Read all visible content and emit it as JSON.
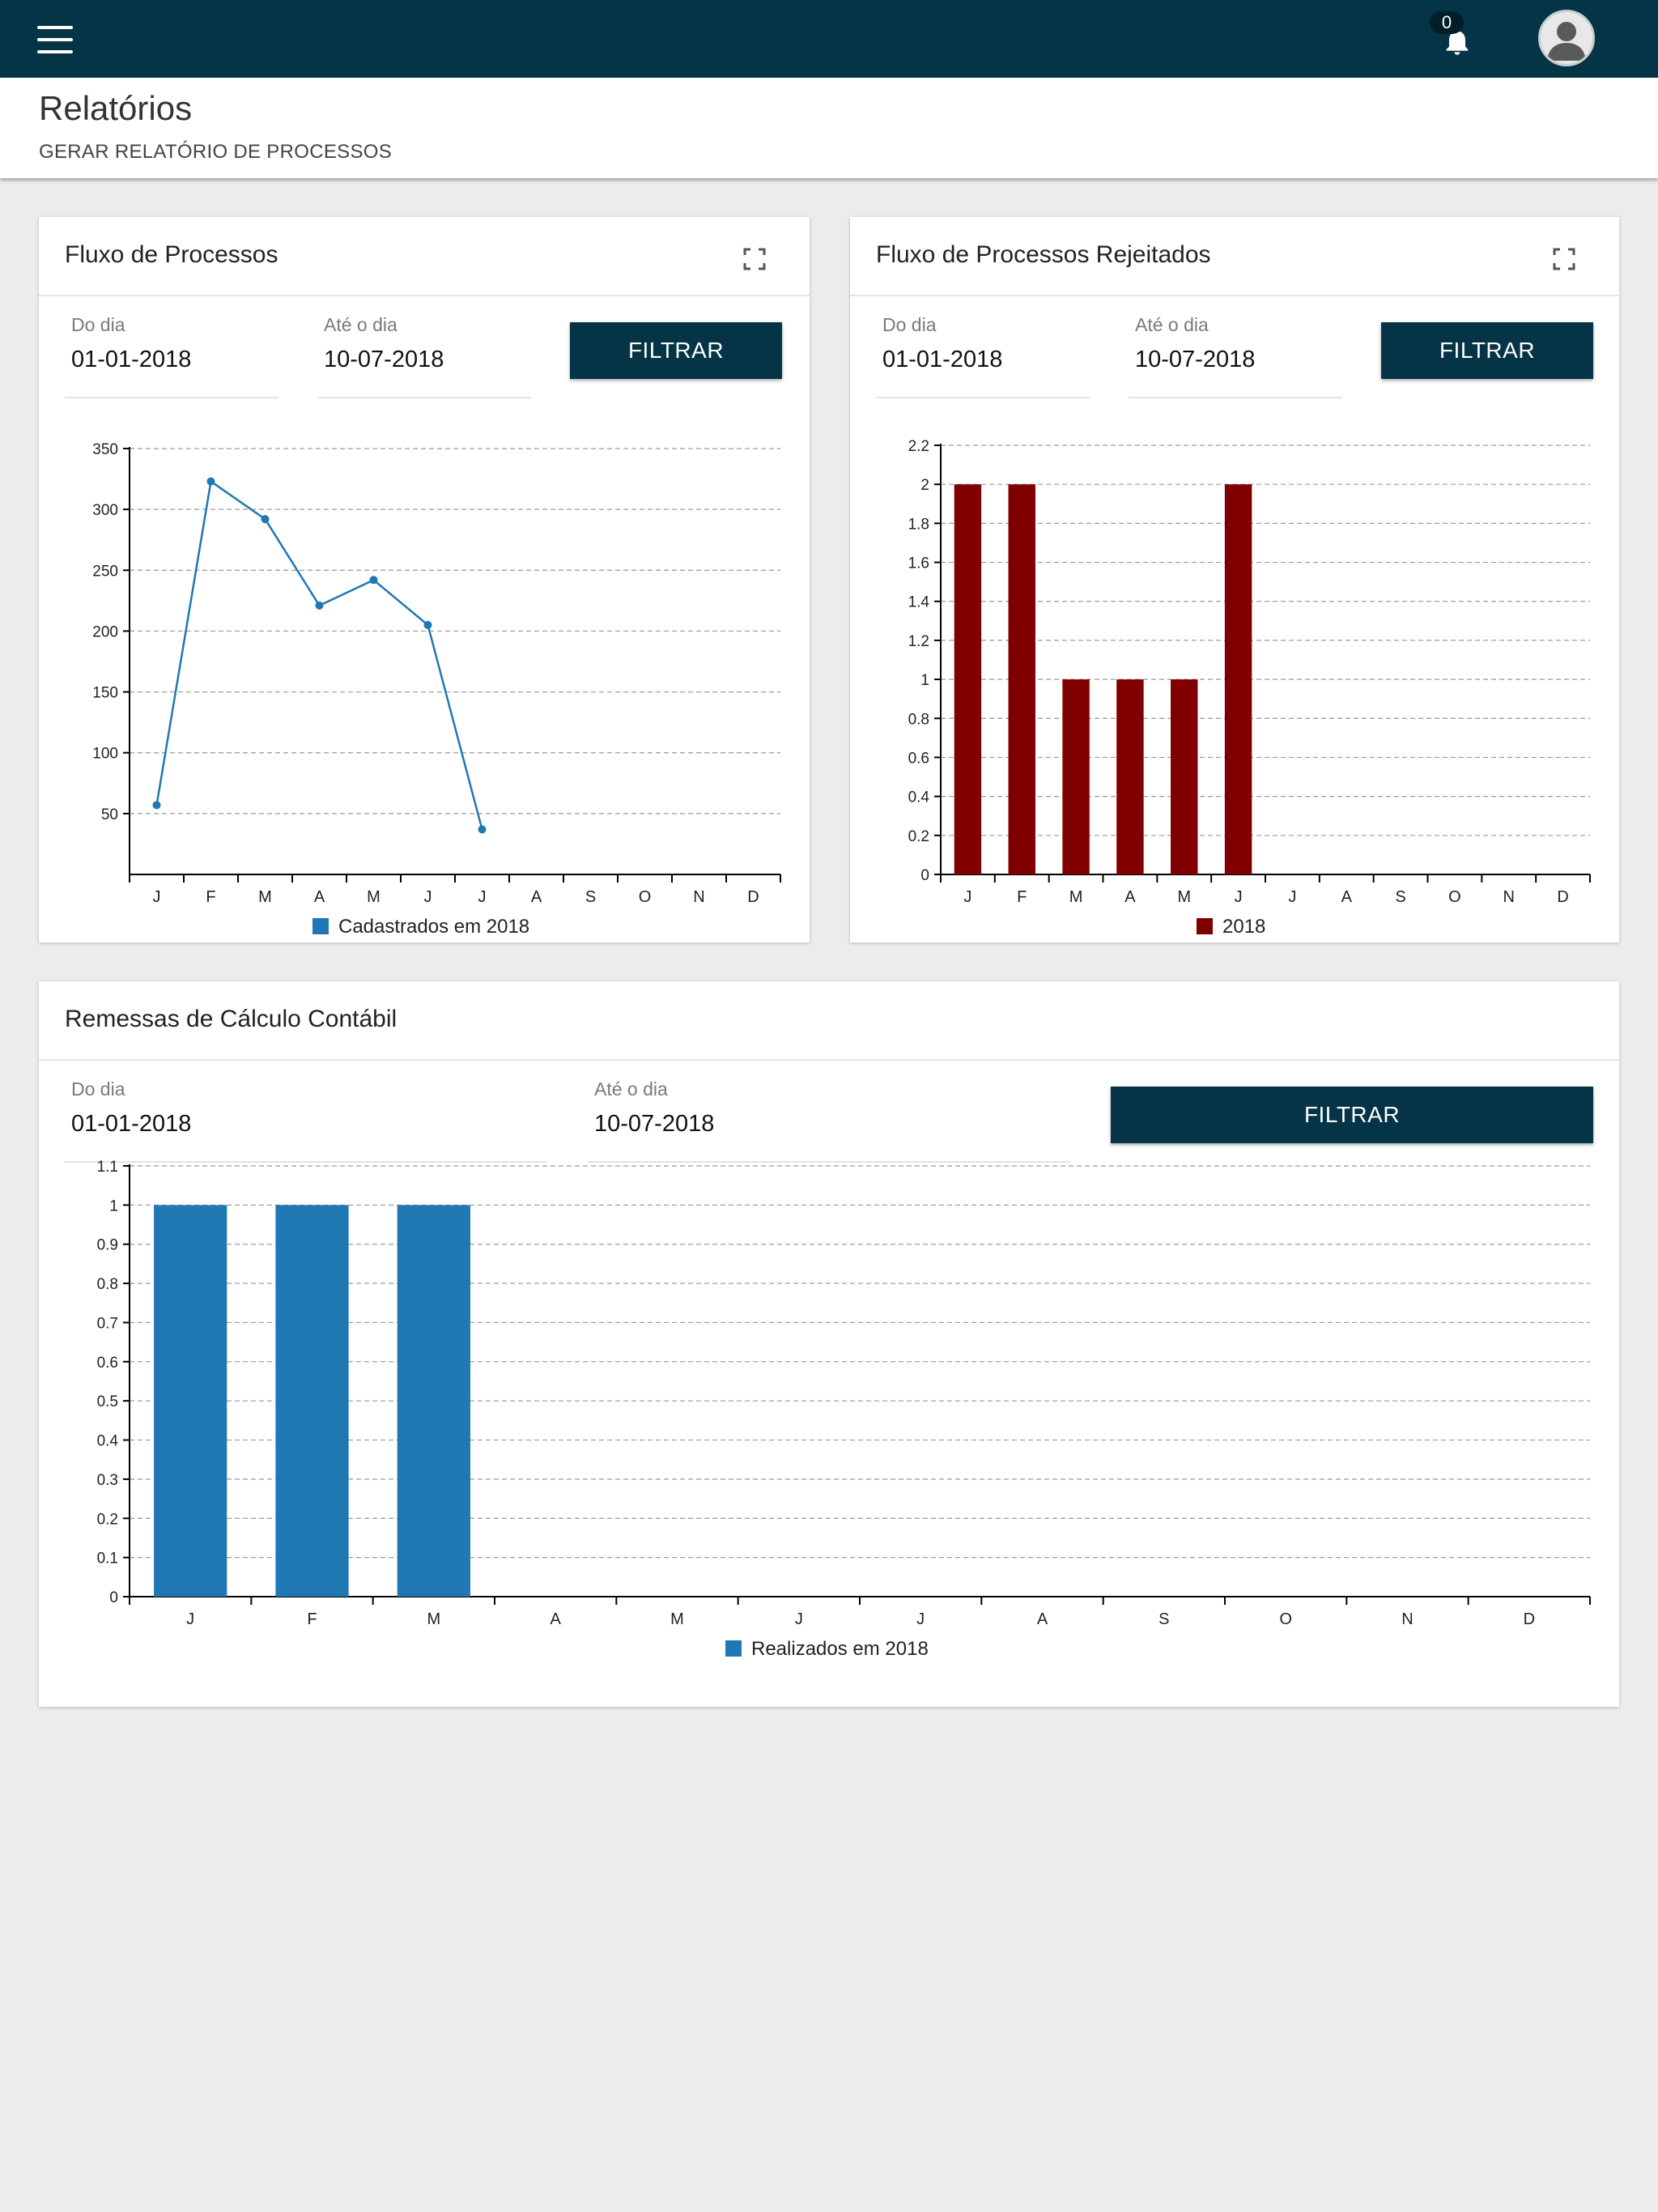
{
  "header": {
    "notification_count": "0",
    "page_title": "Relatórios",
    "page_subtitle": "GERAR RELATÓRIO DE PROCESSOS"
  },
  "cards": [
    {
      "title": "Fluxo de Processos",
      "from_label": "Do dia",
      "from_value": "01-01-2018",
      "to_label": "Até o dia",
      "to_value": "10-07-2018",
      "button": "FILTRAR"
    },
    {
      "title": "Fluxo de Processos Rejeitados",
      "from_label": "Do dia",
      "from_value": "01-01-2018",
      "to_label": "Até o dia",
      "to_value": "10-07-2018",
      "button": "FILTRAR"
    },
    {
      "title": "Remessas de Cálculo Contábil",
      "from_label": "Do dia",
      "from_value": "01-01-2018",
      "to_label": "Até o dia",
      "to_value": "10-07-2018",
      "button": "FILTRAR"
    }
  ],
  "colors": {
    "topbar": "#053447",
    "line_series": "#1f77b4",
    "rejected_bars": "#800000",
    "remessas_bars": "#1f77b4"
  },
  "icons": [
    "menu-icon",
    "bell-icon",
    "user-avatar-icon",
    "expand-icon"
  ],
  "chart_data": [
    {
      "type": "line",
      "categories": [
        "J",
        "F",
        "M",
        "A",
        "M",
        "J",
        "J",
        "A",
        "S",
        "O",
        "N",
        "D"
      ],
      "series": [
        {
          "name": "Cadastrados em 2018",
          "values": [
            57,
            323,
            292,
            221,
            242,
            205,
            37,
            null,
            null,
            null,
            null,
            null
          ]
        }
      ],
      "yticks": [
        50,
        100,
        150,
        200,
        250,
        300,
        350
      ],
      "ylim": [
        0,
        350
      ],
      "grid": true,
      "legend": "bottom-center"
    },
    {
      "type": "bar",
      "categories": [
        "J",
        "F",
        "M",
        "A",
        "M",
        "J",
        "J",
        "A",
        "S",
        "O",
        "N",
        "D"
      ],
      "series": [
        {
          "name": "2018",
          "values": [
            2,
            2,
            1,
            1,
            1,
            2,
            0,
            0,
            0,
            0,
            0,
            0
          ]
        }
      ],
      "yticks": [
        "0",
        "0.2",
        "0.4",
        "0.6",
        "0.8",
        "1",
        "1.2",
        "1.4",
        "1.6",
        "1.8",
        "2",
        "2.2"
      ],
      "ylim": [
        0,
        2.2
      ],
      "grid": true,
      "legend": "bottom-center"
    },
    {
      "type": "bar",
      "categories": [
        "J",
        "F",
        "M",
        "A",
        "M",
        "J",
        "J",
        "A",
        "S",
        "O",
        "N",
        "D"
      ],
      "series": [
        {
          "name": "Realizados em 2018",
          "values": [
            1,
            1,
            1,
            0,
            0,
            0,
            0,
            0,
            0,
            0,
            0,
            0
          ]
        }
      ],
      "yticks": [
        "0",
        "0.1",
        "0.2",
        "0.3",
        "0.4",
        "0.5",
        "0.6",
        "0.7",
        "0.8",
        "0.9",
        "1",
        "1.1"
      ],
      "ylim": [
        0,
        1.1
      ],
      "grid": true,
      "legend": "bottom-center"
    }
  ]
}
